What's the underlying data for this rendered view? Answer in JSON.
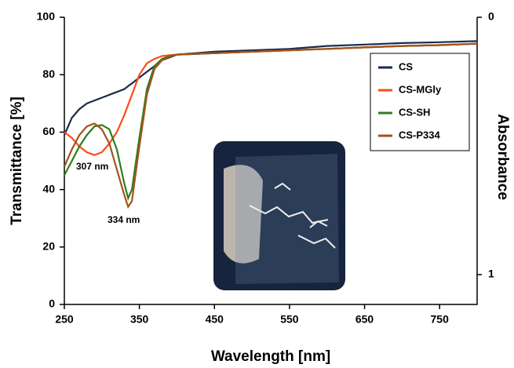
{
  "chart_data": {
    "type": "line",
    "xlabel": "Wavelength [nm]",
    "ylabel": "Transmittance [%]",
    "y2label": "Absorbance",
    "x": [
      250,
      260,
      270,
      280,
      290,
      300,
      310,
      320,
      330,
      335,
      340,
      350,
      360,
      370,
      380,
      390,
      400,
      450,
      500,
      550,
      600,
      650,
      700,
      750,
      800
    ],
    "xlim": [
      250,
      800
    ],
    "xticks": [
      250,
      350,
      450,
      550,
      650,
      750
    ],
    "ylim": [
      0,
      100
    ],
    "yticks": [
      0,
      20,
      40,
      60,
      80,
      100
    ],
    "y2lim": [
      1.116,
      0
    ],
    "y2ticks": [
      0,
      1
    ],
    "series": [
      {
        "name": "CS",
        "color": "#1b2b4b",
        "values": [
          59,
          65,
          68,
          70,
          71,
          72,
          73,
          74,
          75,
          76,
          77,
          79,
          81,
          83,
          85,
          86,
          87,
          88,
          88.5,
          89,
          90,
          90.5,
          91,
          91.3,
          91.7
        ]
      },
      {
        "name": "CS-MGly",
        "color": "#ff4a1c",
        "values": [
          60,
          58,
          55,
          53,
          52,
          53,
          56,
          60,
          66,
          69.5,
          73,
          80,
          84,
          85.5,
          86.5,
          86.8,
          87,
          87.5,
          88,
          88.5,
          89,
          89.5,
          90,
          90.3,
          90.8
        ]
      },
      {
        "name": "CS-SH",
        "color": "#2e7d1e",
        "values": [
          45,
          50,
          55,
          59,
          62,
          62.5,
          61,
          54,
          42,
          37,
          40,
          58,
          75,
          83,
          85.5,
          86.5,
          87,
          87.5,
          88,
          88.5,
          89,
          89.5,
          90,
          90.3,
          90.8
        ]
      },
      {
        "name": "CS-P334",
        "color": "#a4521c",
        "values": [
          48,
          54,
          59,
          62,
          63,
          61,
          56,
          47,
          38,
          34,
          36,
          55,
          73,
          82,
          85,
          86.3,
          87,
          87.5,
          88,
          88.5,
          89,
          89.5,
          90,
          90.3,
          90.8
        ]
      }
    ],
    "annotations": [
      "307 nm",
      "334 nm"
    ]
  }
}
